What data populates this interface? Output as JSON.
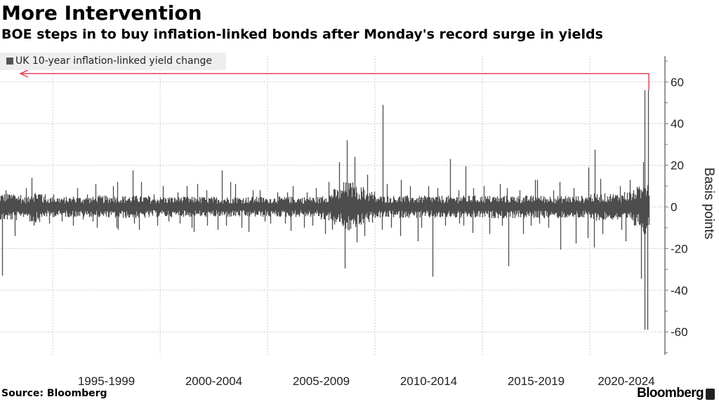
{
  "header": {
    "title": "More Intervention",
    "subtitle": "BOE steps in to buy inflation-linked bonds after Monday's record surge in yields"
  },
  "footer": {
    "source": "Source: Bloomberg",
    "logo": "Bloomberg"
  },
  "colors": {
    "series": "#4d4d4d",
    "annotation_arrow": "#e8425a",
    "legend_bg": "#eeeeee",
    "grid": "#cccccc"
  },
  "chart_data": {
    "type": "bar",
    "title": "More Intervention",
    "subtitle": "BOE steps in to buy inflation-linked bonds after Monday's record surge in yields",
    "ylabel": "Basis points",
    "xlabel": "",
    "legend": {
      "placement": "top-left",
      "entries": [
        "UK 10-year inflation-linked yield change"
      ]
    },
    "series": [
      {
        "name": "UK 10-year inflation-linked yield change"
      }
    ],
    "x_tick_labels": [
      "1995-1999",
      "2000-2004",
      "2005-2009",
      "2010-2014",
      "2015-2019",
      "2020-2024"
    ],
    "x_tick_periods": [
      [
        1995,
        2000
      ],
      [
        2000,
        2005
      ],
      [
        2005,
        2010
      ],
      [
        2010,
        2015
      ],
      [
        2015,
        2020
      ],
      [
        2020,
        2025
      ]
    ],
    "x_range": [
      1992.5,
      2022.75
    ],
    "y_ticks": [
      60,
      40,
      20,
      0,
      -20,
      -40,
      -60
    ],
    "y_tick_labels": [
      "60",
      "40",
      "20",
      "0",
      "-20",
      "-40",
      "-60"
    ],
    "ylim": [
      -71,
      73
    ],
    "grid": true,
    "y_axis_side": "right",
    "bin_description": "half-year bins from 1992.5; daily max and min change per bin",
    "bin_start_year": [
      1992.5,
      1993,
      1993.5,
      1994,
      1994.5,
      1995,
      1995.5,
      1996,
      1996.5,
      1997,
      1997.5,
      1998,
      1998.5,
      1999,
      1999.5,
      2000,
      2000.5,
      2001,
      2001.5,
      2002,
      2002.5,
      2003,
      2003.5,
      2004,
      2004.5,
      2005,
      2005.5,
      2006,
      2006.5,
      2007,
      2007.5,
      2008,
      2008.5,
      2009,
      2009.5,
      2010,
      2010.5,
      2011,
      2011.5,
      2012,
      2012.5,
      2013,
      2013.5,
      2014,
      2014.5,
      2015,
      2015.5,
      2016,
      2016.5,
      2017,
      2017.5,
      2018,
      2018.5,
      2019,
      2019.5,
      2020,
      2020.5,
      2021,
      2021.5,
      2022,
      2022.5
    ],
    "bin_max": [
      8,
      6,
      9,
      14,
      6,
      6,
      5,
      9,
      6,
      11,
      10,
      12,
      17.5,
      12,
      6,
      10,
      7,
      10,
      11,
      8,
      17.5,
      12,
      11,
      8,
      8,
      7,
      7,
      10,
      7,
      9,
      12,
      21.5,
      32,
      24,
      15.5,
      49,
      11,
      13,
      10,
      10,
      9,
      23,
      8,
      19.5,
      9,
      10,
      11,
      9,
      8,
      13,
      13,
      8,
      12,
      9,
      19,
      27.5,
      13.5,
      10,
      13,
      21.5,
      56
    ],
    "bin_min": [
      -33,
      -14,
      -7,
      -9,
      -8,
      -7,
      -9,
      -6,
      -7,
      -10,
      -10,
      -11,
      -8,
      -11,
      -9,
      -7,
      -8,
      -10,
      -12,
      -9,
      -11,
      -9,
      -10,
      -12,
      -7,
      -8,
      -8,
      -11.5,
      -10,
      -9,
      -13,
      -11,
      -29.5,
      -17,
      -14,
      -11,
      -10,
      -14,
      -16.5,
      -10,
      -33.5,
      -9,
      -8,
      -9,
      -12.5,
      -13,
      -9,
      -28.5,
      -13,
      -9,
      -8,
      -10,
      -20.5,
      -17.5,
      -15,
      -19.5,
      -13,
      -11,
      -16.5,
      -34.5,
      -59
    ],
    "bin_typical_abs": [
      6,
      6,
      4.5,
      7,
      4.5,
      4.5,
      4.5,
      4.5,
      4.5,
      5,
      5,
      5,
      5,
      5,
      4.5,
      4.5,
      4.5,
      4.5,
      4.5,
      4.5,
      4.5,
      4.5,
      4.5,
      4.5,
      4.5,
      4.5,
      4.5,
      4.5,
      4.5,
      4.5,
      6,
      8,
      11,
      9,
      7,
      5,
      5,
      5,
      5,
      5,
      5,
      5,
      5,
      5,
      5,
      5,
      5,
      5,
      5,
      5,
      5,
      5,
      5,
      5,
      5,
      6,
      6,
      6,
      7,
      9,
      14
    ],
    "annotation": {
      "type": "arrow",
      "level": 64,
      "from_year": 2022.75,
      "direction": "left"
    }
  }
}
